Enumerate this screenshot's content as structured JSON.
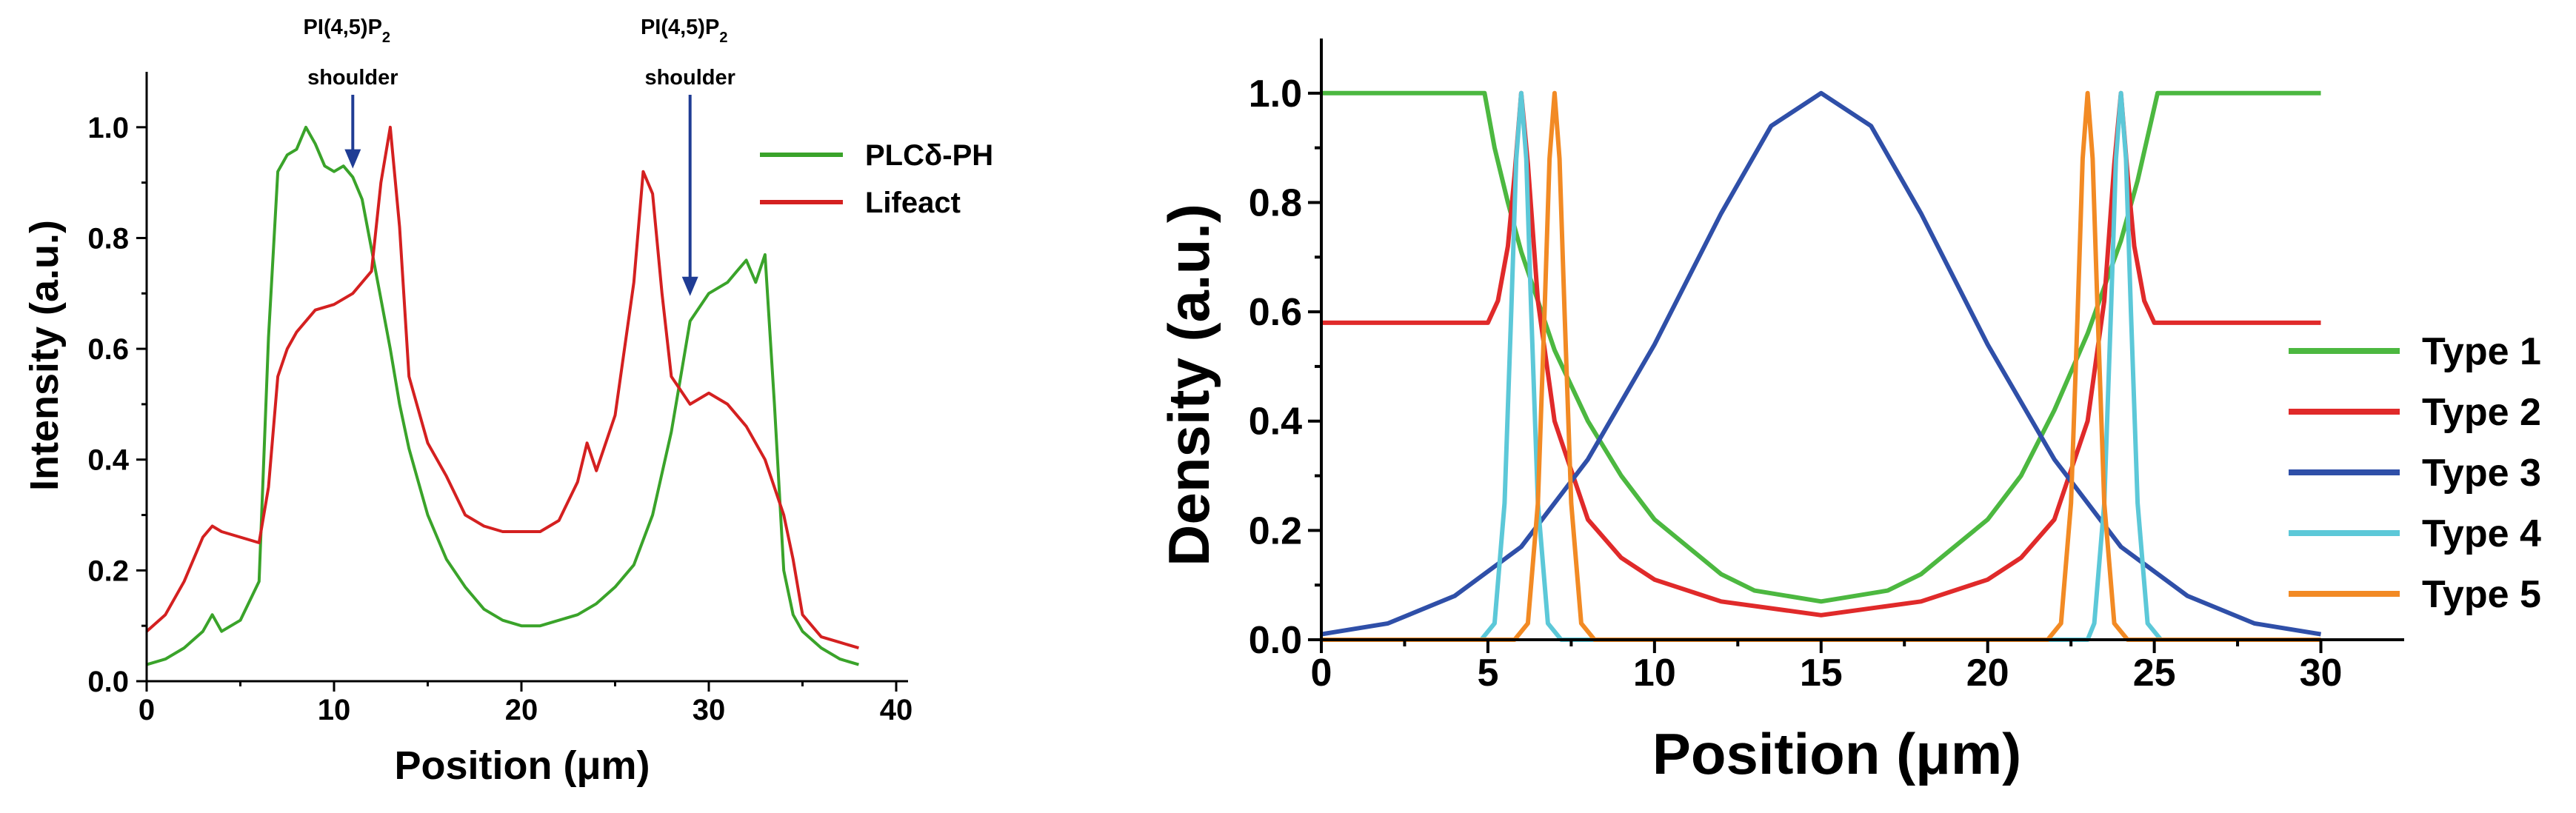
{
  "figure": "PLCδ-PH / Lifeact intensity profile and model density profiles",
  "chart_data": [
    {
      "type": "line",
      "panel": "left",
      "xlabel": "Position (μm)",
      "ylabel": "Intensity (a.u.)",
      "xlim": [
        0,
        40
      ],
      "ylim": [
        0,
        1.1
      ],
      "xticks": [
        0,
        10,
        20,
        30,
        40
      ],
      "yticks": [
        0.0,
        0.2,
        0.4,
        0.6,
        0.8,
        1.0
      ],
      "xtick_labels": [
        "0",
        "10",
        "20",
        "30",
        "40"
      ],
      "ytick_labels": [
        "0.0",
        "0.2",
        "0.4",
        "0.6",
        "0.8",
        "1.0"
      ],
      "grid": false,
      "legend_position": "top-right",
      "series": [
        {
          "name": "PLCδ-PH",
          "color": "#3aa32a",
          "x": [
            0,
            1,
            2,
            3,
            3.5,
            4,
            5,
            6,
            6.5,
            7,
            7.5,
            8,
            8.5,
            9,
            9.5,
            10,
            10.5,
            11,
            11.5,
            12,
            12.5,
            13,
            13.5,
            14,
            14.5,
            15,
            16,
            17,
            18,
            19,
            20,
            21,
            22,
            23,
            24,
            25,
            26,
            27,
            28,
            28.5,
            29,
            30,
            31,
            31.5,
            32,
            32.5,
            33,
            33.5,
            34,
            34.5,
            35,
            36,
            37,
            38
          ],
          "values": [
            0.03,
            0.04,
            0.06,
            0.09,
            0.12,
            0.09,
            0.11,
            0.18,
            0.62,
            0.92,
            0.95,
            0.96,
            1.0,
            0.97,
            0.93,
            0.92,
            0.93,
            0.91,
            0.87,
            0.78,
            0.69,
            0.6,
            0.5,
            0.42,
            0.36,
            0.3,
            0.22,
            0.17,
            0.13,
            0.11,
            0.1,
            0.1,
            0.11,
            0.12,
            0.14,
            0.17,
            0.21,
            0.3,
            0.45,
            0.55,
            0.65,
            0.7,
            0.72,
            0.74,
            0.76,
            0.72,
            0.77,
            0.5,
            0.2,
            0.12,
            0.09,
            0.06,
            0.04,
            0.03
          ]
        },
        {
          "name": "Lifeact",
          "color": "#d42020",
          "x": [
            0,
            1,
            2,
            3,
            3.5,
            4,
            5,
            6,
            6.5,
            7,
            7.5,
            8,
            9,
            10,
            11,
            12,
            12.5,
            13,
            13.5,
            14,
            15,
            16,
            17,
            18,
            19,
            20,
            21,
            22,
            23,
            23.5,
            24,
            25,
            26,
            26.5,
            27,
            27.5,
            28,
            29,
            30,
            31,
            32,
            33,
            34,
            34.5,
            35,
            36,
            37,
            38
          ],
          "values": [
            0.09,
            0.12,
            0.18,
            0.26,
            0.28,
            0.27,
            0.26,
            0.25,
            0.35,
            0.55,
            0.6,
            0.63,
            0.67,
            0.68,
            0.7,
            0.74,
            0.9,
            1.0,
            0.82,
            0.55,
            0.43,
            0.37,
            0.3,
            0.28,
            0.27,
            0.27,
            0.27,
            0.29,
            0.36,
            0.43,
            0.38,
            0.48,
            0.72,
            0.92,
            0.88,
            0.7,
            0.55,
            0.5,
            0.52,
            0.5,
            0.46,
            0.4,
            0.3,
            0.22,
            0.12,
            0.08,
            0.07,
            0.06
          ]
        }
      ],
      "annotations": [
        {
          "line1": "PI(4,5)P",
          "sub": "2",
          "line2": "shoulder",
          "x": 11,
          "y": 0.92
        },
        {
          "line1": "PI(4,5)P",
          "sub": "2",
          "line2": "shoulder",
          "x": 29,
          "y": 0.69
        }
      ]
    },
    {
      "type": "line",
      "panel": "right",
      "xlabel": "Position (μm)",
      "ylabel": "Density (a.u.)",
      "xlim": [
        0,
        32.5
      ],
      "ylim": [
        0,
        1.1
      ],
      "xticks": [
        0,
        5,
        10,
        15,
        20,
        25,
        30
      ],
      "yticks": [
        0.0,
        0.2,
        0.4,
        0.6,
        0.8,
        1.0
      ],
      "xtick_labels": [
        "0",
        "5",
        "10",
        "15",
        "20",
        "25",
        "30"
      ],
      "ytick_labels": [
        "0.0",
        "0.2",
        "0.4",
        "0.6",
        "0.8",
        "1.0"
      ],
      "grid": false,
      "legend_position": "right",
      "series": [
        {
          "name": "Type 1",
          "color": "#4cb840",
          "x": [
            0,
            4.9,
            5.2,
            5.6,
            6,
            7,
            8,
            9,
            10,
            12,
            13,
            15,
            17,
            18,
            20,
            21,
            22,
            23,
            24,
            24.5,
            25.1,
            30
          ],
          "values": [
            1.0,
            1.0,
            0.9,
            0.8,
            0.71,
            0.53,
            0.4,
            0.3,
            0.22,
            0.12,
            0.09,
            0.07,
            0.09,
            0.12,
            0.22,
            0.3,
            0.42,
            0.56,
            0.73,
            0.84,
            1.0,
            1.0
          ]
        },
        {
          "name": "Type 2",
          "color": "#e02a2a",
          "x": [
            0,
            5,
            5.3,
            5.6,
            5.8,
            6,
            6.2,
            6.5,
            7,
            8,
            9,
            10,
            12,
            15,
            18,
            20,
            21,
            22,
            23,
            23.5,
            23.8,
            24,
            24.2,
            24.4,
            24.7,
            25,
            30
          ],
          "values": [
            0.58,
            0.58,
            0.62,
            0.72,
            0.85,
            1.0,
            0.87,
            0.62,
            0.4,
            0.22,
            0.15,
            0.11,
            0.07,
            0.045,
            0.07,
            0.11,
            0.15,
            0.22,
            0.4,
            0.62,
            0.87,
            1.0,
            0.85,
            0.72,
            0.62,
            0.58,
            0.58
          ]
        },
        {
          "name": "Type 3",
          "color": "#2f4fa8",
          "x": [
            0,
            2,
            4,
            6,
            8,
            10,
            12,
            13.5,
            15,
            16.5,
            18,
            20,
            22,
            24,
            26,
            28,
            30
          ],
          "values": [
            0.01,
            0.03,
            0.08,
            0.17,
            0.33,
            0.54,
            0.78,
            0.94,
            1.0,
            0.94,
            0.78,
            0.54,
            0.33,
            0.17,
            0.08,
            0.03,
            0.01
          ]
        },
        {
          "name": "Type 4",
          "color": "#5cc8d8",
          "x": [
            0,
            4.8,
            5.2,
            5.5,
            5.7,
            5.85,
            6,
            6.15,
            6.3,
            6.5,
            6.8,
            7.2,
            23,
            23.2,
            23.5,
            23.7,
            23.85,
            24,
            24.15,
            24.3,
            24.5,
            24.8,
            25.2,
            30
          ],
          "values": [
            0,
            0,
            0.03,
            0.25,
            0.6,
            0.88,
            1.0,
            0.88,
            0.6,
            0.25,
            0.03,
            0,
            0,
            0.03,
            0.25,
            0.6,
            0.88,
            1.0,
            0.88,
            0.6,
            0.25,
            0.03,
            0,
            0
          ]
        },
        {
          "name": "Type 5",
          "color": "#f28a24",
          "x": [
            0,
            5.8,
            6.2,
            6.5,
            6.7,
            6.85,
            7,
            7.15,
            7.3,
            7.5,
            7.8,
            8.2,
            21.8,
            22.2,
            22.5,
            22.7,
            22.85,
            23,
            23.15,
            23.3,
            23.5,
            23.8,
            24.2,
            30
          ],
          "values": [
            0,
            0,
            0.03,
            0.25,
            0.6,
            0.88,
            1.0,
            0.88,
            0.6,
            0.25,
            0.03,
            0,
            0,
            0.03,
            0.25,
            0.6,
            0.88,
            1.0,
            0.88,
            0.6,
            0.25,
            0.03,
            0,
            0
          ]
        }
      ]
    }
  ]
}
